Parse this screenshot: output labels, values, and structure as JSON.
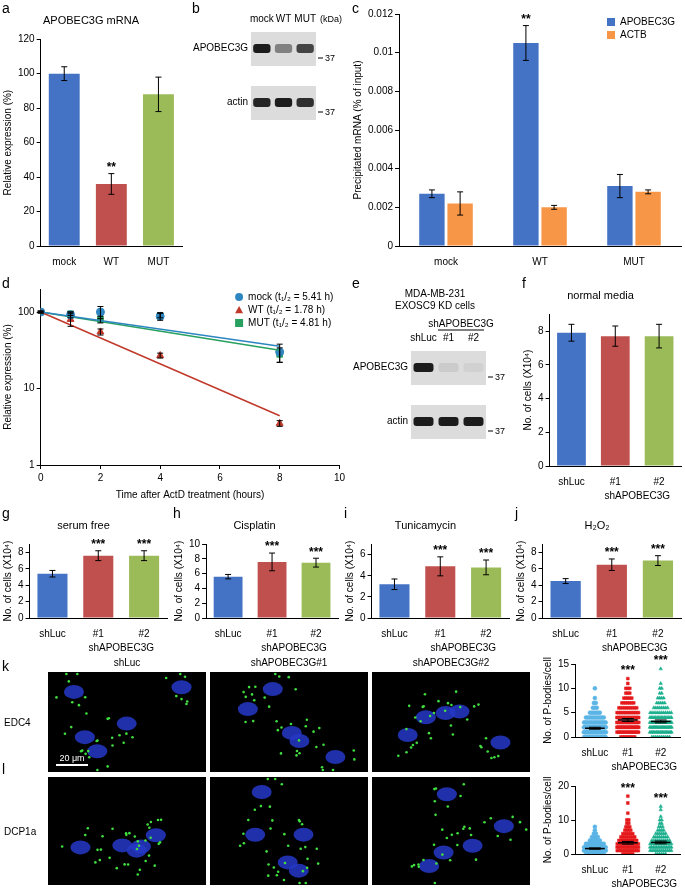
{
  "chart_data": [
    {
      "panel": "a",
      "type": "bar",
      "title": "APOBEC3G mRNA",
      "y_label": "Relative expression (%)",
      "categories": [
        "mock",
        "WT",
        "MUT"
      ],
      "values": [
        100,
        36,
        88
      ],
      "error": [
        4,
        6,
        10
      ],
      "colors": [
        "#4472c4",
        "#c0504d",
        "#9bbb59"
      ],
      "annotations": [
        null,
        "**",
        null
      ],
      "ylim": [
        0,
        120
      ],
      "yticks": [
        0,
        20,
        40,
        60,
        80,
        100,
        120
      ],
      "grid": false
    },
    {
      "panel": "c",
      "type": "bar",
      "y_label": "Precipitated mRNA (% of input)",
      "categories": [
        "mock",
        "WT",
        "MUT"
      ],
      "series": [
        {
          "name": "APOBEC3G",
          "color": "#4472c4",
          "values": [
            0.0027,
            0.0105,
            0.0031
          ],
          "error": [
            0.0002,
            0.0009,
            0.0006
          ],
          "annotations": [
            null,
            "**",
            null
          ]
        },
        {
          "name": "ACTB",
          "color": "#f79646",
          "values": [
            0.0022,
            0.002,
            0.0028
          ],
          "error": [
            0.0006,
            0.0001,
            0.0001
          ]
        }
      ],
      "ylim": [
        0,
        0.012
      ],
      "yticks": [
        0,
        0.002,
        0.004,
        0.006,
        0.008,
        0.01,
        0.012
      ],
      "legend": "top-right",
      "grid": false
    },
    {
      "panel": "d",
      "type": "line",
      "x_label": "Time after ActD treatment (hours)",
      "y_label": "Relative expression (%)",
      "x": [
        0,
        1,
        2,
        4,
        8
      ],
      "series": [
        {
          "name": "mock (t₁/₂ = 5.41 h)",
          "color": "#2e86c1",
          "marker": "circle",
          "values": [
            100,
            92,
            100,
            88,
            30
          ],
          "error": [
            3,
            8,
            18,
            10,
            8
          ],
          "fit": {
            "x": [
              0,
              8
            ],
            "values": [
              100,
              35.8
            ]
          }
        },
        {
          "name": "WT (t₁/₂ = 1.78 h)",
          "color": "#c0392b",
          "marker": "triangle",
          "values": [
            100,
            80,
            55,
            27,
            3.5
          ],
          "error": [
            2,
            15,
            5,
            2,
            0.3
          ],
          "fit": {
            "x": [
              0,
              8
            ],
            "values": [
              100,
              4.4
            ]
          }
        },
        {
          "name": "MUT (t₁/₂ = 4.81 h)",
          "color": "#27a060",
          "marker": "square",
          "values": [
            100,
            95,
            80,
            90,
            28
          ],
          "error": [
            3,
            5,
            8,
            6,
            6
          ],
          "fit": {
            "x": [
              0,
              8
            ],
            "values": [
              100,
              31.6
            ]
          }
        }
      ],
      "xlim": [
        0,
        10
      ],
      "xticks": [
        0,
        2,
        4,
        6,
        8,
        10
      ],
      "ylim": [
        1,
        200
      ],
      "yticks": [
        1,
        10,
        100
      ],
      "log": "y",
      "legend": "top-right",
      "grid": false
    },
    {
      "panel": "f",
      "type": "bar",
      "title": "normal media",
      "y_label": "No. of cells (X10⁴)",
      "categories": [
        "shLuc",
        "#1",
        "#2"
      ],
      "group_label": "shAPOBEC3G",
      "values": [
        7.9,
        7.7,
        7.7
      ],
      "error": [
        0.5,
        0.6,
        0.7
      ],
      "colors": [
        "#4472c4",
        "#c0504d",
        "#9bbb59"
      ],
      "ylim": [
        0,
        9
      ],
      "yticks": [
        0,
        2,
        4,
        6,
        8
      ],
      "grid": false
    },
    {
      "panel": "g",
      "type": "bar",
      "title": "serum free",
      "y_label": "No. of cells (X10⁴)",
      "categories": [
        "shLuc",
        "#1",
        "#2"
      ],
      "group_label": "shAPOBEC3G",
      "values": [
        5.4,
        7.6,
        7.6
      ],
      "error": [
        0.4,
        0.6,
        0.6
      ],
      "colors": [
        "#4472c4",
        "#c0504d",
        "#9bbb59"
      ],
      "annotations": [
        null,
        "***",
        "***"
      ],
      "ylim": [
        0,
        9
      ],
      "yticks": [
        0,
        2,
        4,
        6,
        8
      ],
      "grid": false
    },
    {
      "panel": "h",
      "type": "bar",
      "title": "Cisplatin",
      "y_label": "No. of cells (X10⁴)",
      "categories": [
        "shLuc",
        "#1",
        "#2"
      ],
      "group_label": "shAPOBEC3G",
      "values": [
        5.6,
        7.6,
        7.5
      ],
      "error": [
        0.3,
        1.2,
        0.6
      ],
      "colors": [
        "#4472c4",
        "#c0504d",
        "#9bbb59"
      ],
      "annotations": [
        null,
        "***",
        "***"
      ],
      "ylim": [
        0,
        10
      ],
      "yticks": [
        0,
        2,
        4,
        6,
        8,
        10
      ],
      "grid": false
    },
    {
      "panel": "i",
      "type": "bar",
      "title": "Tunicamycin",
      "y_label": "No. of cells (X10⁴)",
      "categories": [
        "shLuc",
        "#1",
        "#2"
      ],
      "group_label": "shAPOBEC3G",
      "values": [
        3.2,
        4.9,
        4.8
      ],
      "error": [
        0.5,
        0.9,
        0.7
      ],
      "colors": [
        "#4472c4",
        "#c0504d",
        "#9bbb59"
      ],
      "annotations": [
        null,
        "***",
        "***"
      ],
      "ylim": [
        0,
        7
      ],
      "yticks": [
        0,
        2,
        4,
        6
      ],
      "grid": false
    },
    {
      "panel": "j",
      "type": "bar",
      "title": "H₂O₂",
      "y_label": "No. of cells (X10⁴)",
      "categories": [
        "shLuc",
        "#1",
        "#2"
      ],
      "group_label": "shAPOBEC3G",
      "values": [
        4.5,
        6.5,
        7.0
      ],
      "error": [
        0.3,
        0.7,
        0.6
      ],
      "colors": [
        "#4472c4",
        "#c0504d",
        "#9bbb59"
      ],
      "annotations": [
        null,
        "***",
        "***"
      ],
      "ylim": [
        0,
        9
      ],
      "yticks": [
        0,
        2,
        4,
        6,
        8
      ],
      "grid": false
    },
    {
      "type": "scatter",
      "y_label": "No. of P-bodies/cell",
      "categories": [
        "shLuc",
        "#1",
        "#2"
      ],
      "group_label": "shAPOBEC3G",
      "series": [
        {
          "color": "#5ab4e5",
          "marker": "circle",
          "levels": [
            0,
            1,
            2,
            3,
            4,
            5,
            6,
            7,
            8,
            10
          ],
          "counts": [
            14,
            24,
            22,
            16,
            10,
            6,
            3,
            2,
            1,
            1
          ],
          "mean": 1.8,
          "sem": 0.2
        },
        {
          "color": "#e41a1c",
          "marker": "square",
          "levels": [
            0,
            1,
            2,
            3,
            4,
            5,
            6,
            7,
            8,
            9,
            10,
            11,
            12
          ],
          "counts": [
            8,
            16,
            20,
            20,
            18,
            14,
            10,
            7,
            5,
            3,
            3,
            1,
            1
          ],
          "mean": 3.5,
          "sem": 0.3,
          "annotation": "***"
        },
        {
          "color": "#1aae8c",
          "marker": "triangle",
          "levels": [
            0,
            1,
            2,
            3,
            4,
            5,
            6,
            7,
            8,
            9,
            10,
            11,
            14
          ],
          "counts": [
            10,
            18,
            20,
            18,
            16,
            12,
            8,
            5,
            4,
            2,
            2,
            1,
            1
          ],
          "mean": 3.2,
          "sem": 0.3,
          "annotation": "***"
        }
      ],
      "ylim": [
        0,
        15
      ],
      "yticks": [
        0,
        5,
        10,
        15
      ],
      "grid": false
    },
    {
      "type": "scatter",
      "y_label": "No. of P-bodies/cell",
      "categories": [
        "shLuc",
        "#1",
        "#2"
      ],
      "group_label": "shAPOBEC3G",
      "series": [
        {
          "color": "#5ab4e5",
          "marker": "circle",
          "levels": [
            0,
            1,
            2,
            3,
            4,
            5,
            6,
            7,
            8
          ],
          "counts": [
            10,
            20,
            15,
            10,
            6,
            4,
            2,
            1,
            1
          ],
          "mean": 1.6,
          "sem": 0.2
        },
        {
          "color": "#e41a1c",
          "marker": "square",
          "levels": [
            0,
            1,
            2,
            3,
            4,
            5,
            6,
            7,
            8,
            9,
            10,
            12,
            15,
            17
          ],
          "counts": [
            6,
            12,
            14,
            12,
            10,
            8,
            6,
            4,
            3,
            2,
            2,
            1,
            1,
            1
          ],
          "mean": 3.3,
          "sem": 0.4,
          "annotation": "***"
        },
        {
          "color": "#1aae8c",
          "marker": "triangle",
          "levels": [
            0,
            1,
            2,
            3,
            4,
            5,
            6,
            7,
            8,
            9,
            10,
            11,
            13,
            14
          ],
          "counts": [
            6,
            12,
            14,
            12,
            10,
            8,
            6,
            4,
            3,
            2,
            2,
            1,
            1,
            1
          ],
          "mean": 3.4,
          "sem": 0.4,
          "annotation": "***"
        }
      ],
      "ylim": [
        0,
        20
      ],
      "yticks": [
        0,
        10,
        20
      ],
      "grid": false
    }
  ],
  "blots": [
    {
      "panel": "b",
      "columns": [
        "mock",
        "WT",
        "MUT"
      ],
      "unit": "(kDa)",
      "rows": [
        {
          "label": "APOBEC3G",
          "size_marker": 37,
          "intensity": [
            0.95,
            0.45,
            0.75
          ]
        },
        {
          "label": "actin",
          "size_marker": 37,
          "intensity": [
            0.9,
            0.95,
            0.85
          ]
        }
      ]
    },
    {
      "panel": "e",
      "title": [
        "MDA-MB-231",
        "EXOSC9 KD cells"
      ],
      "columns": [
        "shLuc",
        "#1",
        "#2"
      ],
      "column_group": "shAPOBEC3G",
      "rows": [
        {
          "label": "APOBEC3G",
          "size_marker": 37,
          "intensity": [
            0.95,
            0.08,
            0.05
          ]
        },
        {
          "label": "actin",
          "size_marker": 37,
          "intensity": [
            0.95,
            0.95,
            0.95
          ]
        }
      ]
    }
  ],
  "micrographs": {
    "columns": [
      "shLuc",
      "shAPOBEC3G#1",
      "shAPOBEC3G#2"
    ],
    "rows": [
      {
        "panel": "k",
        "label": "EDC4"
      },
      {
        "panel": "l",
        "label": "DCP1a"
      }
    ],
    "scale_bar": "20 μm"
  }
}
